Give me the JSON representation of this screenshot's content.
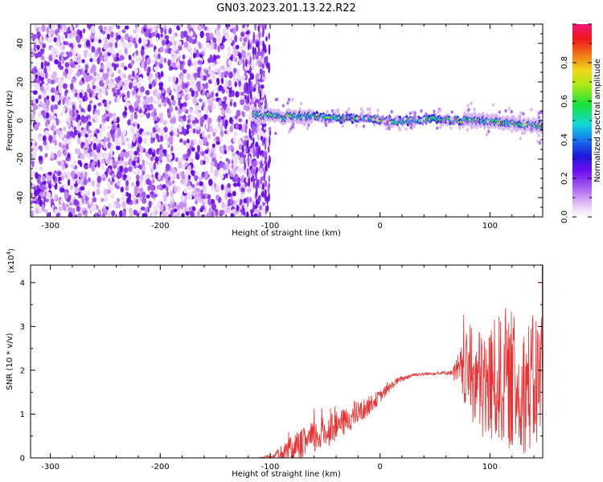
{
  "title": "GN03.2023.201.13.22.R22",
  "colors": {
    "snr_line": "#e83232",
    "spectrogram_noise": "#7a2cf0",
    "colormap": [
      "#ffffff",
      "#e6c9f7",
      "#b06cf0",
      "#6a0cf0",
      "#1a1ad8",
      "#1878f0",
      "#12d8d8",
      "#18e03a",
      "#a8e818",
      "#f0d818",
      "#f07818",
      "#f01818",
      "#f01878"
    ]
  },
  "chart_data": [
    {
      "type": "heatmap",
      "xlabel": "Height of straight line (km)",
      "ylabel": "Frequency (Hz)",
      "xlim": [
        -318,
        148
      ],
      "ylim": [
        -50,
        50
      ],
      "x_ticks": [
        "-300",
        "-200",
        "-100",
        "0",
        "100"
      ],
      "y_ticks": [
        "40",
        "20",
        "0",
        "-20",
        "-40"
      ],
      "colorbar": {
        "label": "Normalized spectral amplitude",
        "range": [
          0.0,
          1.0
        ],
        "ticks": [
          "0.0",
          "0.2",
          "0.4",
          "0.6",
          "0.8"
        ]
      },
      "noise_region_x": [
        -318,
        -110
      ],
      "signal_band": {
        "x": [
          -115,
          148
        ],
        "center_freq": [
          3,
          2,
          2,
          1,
          1,
          0,
          0,
          1,
          0,
          0,
          -1,
          -2,
          -3
        ],
        "center_x": [
          -115,
          -90,
          -60,
          -30,
          -10,
          10,
          30,
          50,
          70,
          90,
          110,
          130,
          148
        ]
      },
      "grid": false
    },
    {
      "type": "line",
      "xlabel": "Height of straight line (km)",
      "ylabel": "SNR (10 * v/v)",
      "multiplier_label": "(x10",
      "multiplier_exp": "4",
      "multiplier_close": ")",
      "xlim": [
        -318,
        148
      ],
      "ylim": [
        0,
        4.4
      ],
      "x_ticks": [
        "-300",
        "-200",
        "-100",
        "0",
        "100"
      ],
      "y_ticks": [
        "0",
        "1",
        "2",
        "3",
        "4"
      ],
      "envelope": {
        "x": [
          -318,
          -110,
          -100,
          -90,
          -75,
          -60,
          -45,
          -30,
          -15,
          0,
          15,
          30,
          50,
          65,
          80,
          95,
          110,
          125,
          140,
          148
        ],
        "mean": [
          0.0,
          0.0,
          0.03,
          0.1,
          0.25,
          0.45,
          0.65,
          0.85,
          1.1,
          1.4,
          1.75,
          1.9,
          1.93,
          1.95,
          1.95,
          1.6,
          1.8,
          1.5,
          1.7,
          1.8
        ],
        "amp": [
          0.0,
          0.0,
          0.05,
          0.2,
          0.35,
          0.4,
          0.35,
          0.3,
          0.25,
          0.15,
          0.08,
          0.04,
          0.03,
          0.05,
          1.0,
          1.4,
          1.5,
          1.4,
          1.6,
          1.8
        ]
      },
      "grid": false
    }
  ]
}
